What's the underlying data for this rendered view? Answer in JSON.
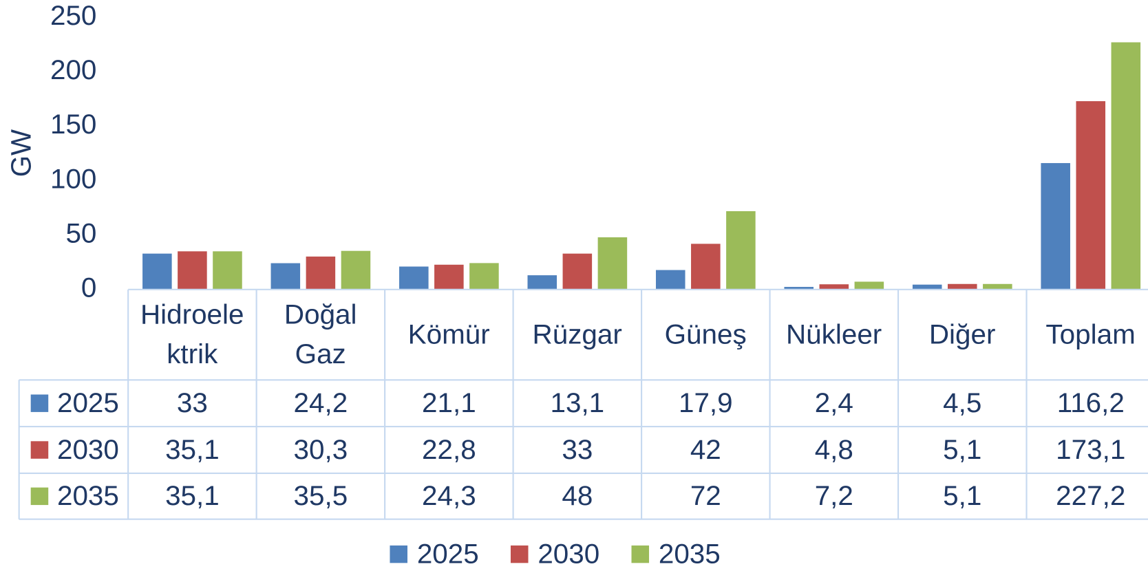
{
  "chart_data": {
    "type": "bar",
    "y_label": "GW",
    "categories": [
      "Hidroelektrik",
      "Doğal Gaz",
      "Kömür",
      "Rüzgar",
      "Güneş",
      "Nükleer",
      "Diğer",
      "Toplam"
    ],
    "series": [
      {
        "name": "2025",
        "color": "#4f81bd",
        "values": [
          33,
          24.2,
          21.1,
          13.1,
          17.9,
          2.4,
          4.5,
          116.2
        ],
        "value_labels": [
          "33",
          "24,2",
          "21,1",
          "13,1",
          "17,9",
          "2,4",
          "4,5",
          "116,2"
        ]
      },
      {
        "name": "2030",
        "color": "#c0504d",
        "values": [
          35.1,
          30.3,
          22.8,
          33,
          42,
          4.8,
          5.1,
          173.1
        ],
        "value_labels": [
          "35,1",
          "30,3",
          "22,8",
          "33",
          "42",
          "4,8",
          "5,1",
          "173,1"
        ]
      },
      {
        "name": "2035",
        "color": "#9bbb59",
        "values": [
          35.1,
          35.5,
          24.3,
          48,
          72,
          7.2,
          5.1,
          227.2
        ],
        "value_labels": [
          "35,1",
          "35,5",
          "24,3",
          "48",
          "72",
          "7,2",
          "5,1",
          "227,2"
        ]
      }
    ],
    "ylim": [
      0,
      250
    ],
    "yticks": [
      0,
      50,
      100,
      150,
      200,
      250
    ],
    "grid": false,
    "legend": "bottom"
  }
}
